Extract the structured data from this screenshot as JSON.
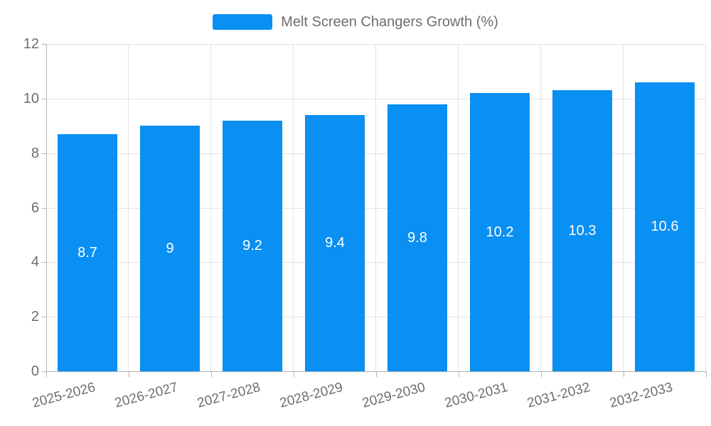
{
  "chart_data": {
    "type": "bar",
    "title": "",
    "categories": [
      "2025-2026",
      "2026-2027",
      "2027-2028",
      "2028-2029",
      "2029-2030",
      "2030-2031",
      "2031-2032",
      "2032-2033"
    ],
    "series": [
      {
        "name": "Melt Screen Changers Growth (%)",
        "values": [
          8.7,
          9,
          9.2,
          9.4,
          9.8,
          10.2,
          10.3,
          10.6
        ]
      }
    ],
    "value_labels": [
      "8.7",
      "9",
      "9.2",
      "9.4",
      "9.8",
      "10.2",
      "10.3",
      "10.6"
    ],
    "ylim": [
      0,
      12
    ],
    "yticks": [
      0,
      2,
      4,
      6,
      8,
      10,
      12
    ],
    "grid": true,
    "legend_position": "top-center",
    "xlabel": "",
    "ylabel": ""
  },
  "colors": {
    "bar": "#0a8ff2",
    "grid": "#e3e3e3",
    "axis": "#b3b3b3",
    "tick_text": "#6e6e6e",
    "value_text": "#ffffff",
    "background": "#ffffff"
  }
}
